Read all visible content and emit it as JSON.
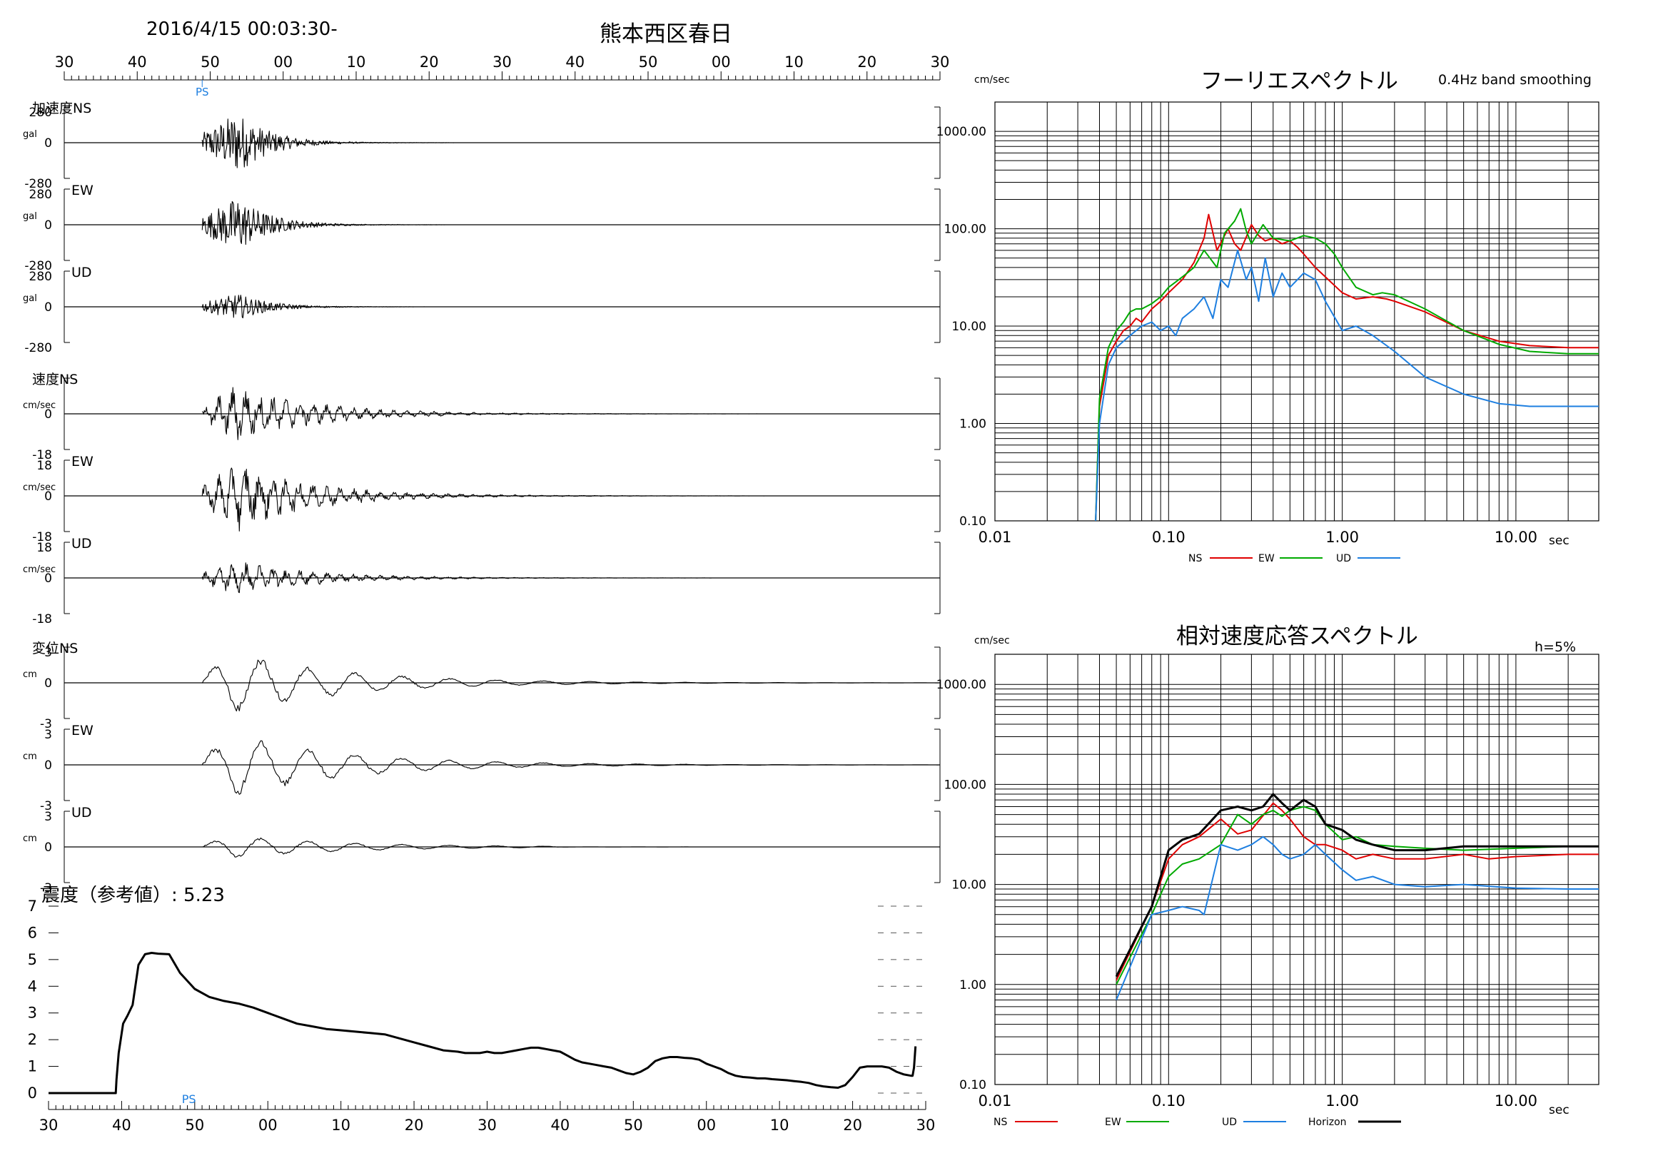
{
  "header": {
    "start_time": "2016/4/15 00:03:30-",
    "station": "熊本西区春日"
  },
  "time_axis": {
    "top_labels": [
      "30",
      "40",
      "50",
      "00",
      "10",
      "20",
      "30",
      "40",
      "50",
      "00",
      "10",
      "20",
      "30"
    ],
    "bottom_labels": [
      "30",
      "40",
      "50",
      "00",
      "10",
      "20",
      "30",
      "40",
      "50",
      "00",
      "10",
      "20",
      "30"
    ],
    "ps_marker": "PS"
  },
  "waveforms": [
    {
      "group": "加速度",
      "component": "NS",
      "label": "加速度NS",
      "unit": "gal",
      "range": [
        "280",
        "0",
        "-280"
      ],
      "amp": 0.95
    },
    {
      "group": "加速度",
      "component": "EW",
      "label": "EW",
      "unit": "gal",
      "range": [
        "280",
        "0",
        "-280"
      ],
      "amp": 0.85
    },
    {
      "group": "加速度",
      "component": "UD",
      "label": "UD",
      "unit": "gal",
      "range": [
        "280",
        "0",
        "-280"
      ],
      "amp": 0.4
    },
    {
      "group": "速度",
      "component": "NS",
      "label": "速度NS",
      "unit": "cm/sec",
      "range": [
        "",
        "0",
        "-18"
      ],
      "amp": 0.85
    },
    {
      "group": "速度",
      "component": "EW",
      "label": "EW",
      "unit": "cm/sec",
      "range": [
        "18",
        "0",
        "-18"
      ],
      "amp": 1.0
    },
    {
      "group": "速度",
      "component": "UD",
      "label": "UD",
      "unit": "cm/sec",
      "range": [
        "18",
        "0",
        "-18"
      ],
      "amp": 0.5
    },
    {
      "group": "変位",
      "component": "NS",
      "label": "変位NS",
      "unit": "cm",
      "range": [
        "3",
        "0",
        "-3"
      ],
      "amp": 0.8
    },
    {
      "group": "変位",
      "component": "EW",
      "label": "EW",
      "unit": "cm",
      "range": [
        "3",
        "0",
        "-3"
      ],
      "amp": 0.85
    },
    {
      "group": "変位",
      "component": "UD",
      "label": "UD",
      "unit": "cm",
      "range": [
        "3",
        "0",
        "-3"
      ],
      "amp": 0.3
    }
  ],
  "intensity": {
    "title": "震度（参考値）: 5.23",
    "y_ticks": [
      "0",
      "1",
      "2",
      "3",
      "4",
      "5",
      "6",
      "7"
    ],
    "chart_data": {
      "type": "line",
      "xlabel": "",
      "ylabel": "",
      "ylim": [
        0,
        7
      ],
      "x_seconds": [
        0,
        9.2,
        9.3,
        9.6,
        10.2,
        10.8,
        11.5,
        12.3,
        13.2,
        14.1,
        15,
        16.5,
        18,
        20,
        22,
        24,
        26,
        28,
        30,
        32,
        34,
        36,
        38,
        40,
        42,
        44,
        46,
        48,
        50,
        52,
        54,
        56,
        57,
        58,
        59,
        60,
        61,
        62,
        63,
        64,
        65,
        66,
        67,
        68,
        69,
        70,
        71,
        72,
        73,
        74,
        75,
        76,
        77,
        78,
        79,
        80,
        81,
        82,
        83,
        84,
        85,
        86,
        87,
        88,
        89,
        90,
        91,
        92,
        93,
        94,
        95,
        96,
        97,
        98,
        99,
        100,
        101,
        102,
        103,
        104,
        105,
        106,
        107,
        108,
        109,
        110,
        111,
        112,
        113,
        114,
        115,
        116,
        117,
        118,
        118.2,
        118.4,
        118.6
      ],
      "values": [
        0,
        0,
        0.5,
        1.5,
        2.6,
        2.9,
        3.3,
        4.8,
        5.2,
        5.25,
        5.22,
        5.2,
        4.5,
        3.9,
        3.6,
        3.45,
        3.35,
        3.2,
        3.0,
        2.8,
        2.6,
        2.5,
        2.4,
        2.35,
        2.3,
        2.25,
        2.2,
        2.05,
        1.9,
        1.75,
        1.6,
        1.55,
        1.5,
        1.5,
        1.5,
        1.55,
        1.5,
        1.5,
        1.55,
        1.6,
        1.65,
        1.7,
        1.7,
        1.65,
        1.6,
        1.55,
        1.4,
        1.25,
        1.15,
        1.1,
        1.05,
        1.0,
        0.95,
        0.85,
        0.75,
        0.7,
        0.8,
        0.95,
        1.2,
        1.3,
        1.35,
        1.35,
        1.32,
        1.3,
        1.25,
        1.1,
        1.0,
        0.9,
        0.75,
        0.65,
        0.6,
        0.58,
        0.55,
        0.55,
        0.52,
        0.5,
        0.48,
        0.45,
        0.42,
        0.38,
        0.3,
        0.25,
        0.22,
        0.2,
        0.3,
        0.6,
        0.95,
        1.0,
        1.0,
        1.0,
        0.95,
        0.8,
        0.7,
        0.65,
        0.65,
        0.95,
        1.75
      ]
    }
  },
  "fourier": {
    "title": "フーリエスペクトル",
    "subtitle": "0.4Hz band smoothing",
    "y_unit": "cm/sec",
    "x_unit": "sec",
    "y_ticks": [
      "0.10",
      "1.00",
      "10.00",
      "100.00",
      "1000.00"
    ],
    "x_ticks": [
      "0.01",
      "0.10",
      "1.00",
      "10.00"
    ],
    "legend": [
      "NS",
      "EW",
      "UD"
    ],
    "chart_data": {
      "type": "line",
      "x_scale": "log",
      "y_scale": "log",
      "xlim": [
        0.01,
        30
      ],
      "ylim": [
        0.1,
        2000
      ],
      "series": [
        {
          "name": "NS",
          "color": "#e00000",
          "x": [
            0.038,
            0.04,
            0.045,
            0.05,
            0.055,
            0.06,
            0.065,
            0.07,
            0.08,
            0.09,
            0.1,
            0.12,
            0.14,
            0.16,
            0.17,
            0.19,
            0.22,
            0.24,
            0.26,
            0.3,
            0.33,
            0.36,
            0.4,
            0.45,
            0.5,
            0.55,
            0.6,
            0.7,
            0.8,
            1.0,
            1.2,
            1.5,
            1.8,
            2.0,
            3.0,
            5.0,
            8.0,
            12,
            20,
            30
          ],
          "y": [
            0.1,
            1.5,
            5,
            7,
            9,
            10,
            12,
            11,
            15,
            18,
            22,
            30,
            45,
            80,
            140,
            60,
            100,
            70,
            60,
            110,
            85,
            75,
            80,
            70,
            75,
            65,
            55,
            40,
            32,
            22,
            19,
            20,
            19,
            18,
            14,
            9,
            7,
            6.3,
            6,
            6
          ]
        },
        {
          "name": "EW",
          "color": "#00aa00",
          "x": [
            0.038,
            0.04,
            0.045,
            0.05,
            0.055,
            0.06,
            0.065,
            0.07,
            0.08,
            0.09,
            0.1,
            0.12,
            0.14,
            0.16,
            0.19,
            0.21,
            0.24,
            0.26,
            0.28,
            0.3,
            0.35,
            0.4,
            0.5,
            0.6,
            0.7,
            0.8,
            0.9,
            1.0,
            1.2,
            1.5,
            1.7,
            2.0,
            3.0,
            5.0,
            8.0,
            12,
            20,
            30
          ],
          "y": [
            0.1,
            1.8,
            6,
            9,
            11,
            14,
            15,
            15,
            17,
            20,
            25,
            32,
            40,
            60,
            40,
            90,
            120,
            160,
            95,
            70,
            110,
            80,
            75,
            85,
            80,
            70,
            55,
            40,
            25,
            21,
            22,
            21,
            15,
            9,
            6.5,
            5.5,
            5.2,
            5.2
          ]
        },
        {
          "name": "UD",
          "color": "#1e7fe0",
          "x": [
            0.038,
            0.04,
            0.045,
            0.05,
            0.055,
            0.06,
            0.065,
            0.07,
            0.08,
            0.09,
            0.1,
            0.11,
            0.12,
            0.14,
            0.16,
            0.18,
            0.2,
            0.22,
            0.25,
            0.28,
            0.3,
            0.33,
            0.36,
            0.4,
            0.45,
            0.5,
            0.6,
            0.7,
            0.8,
            1.0,
            1.2,
            1.5,
            2.0,
            3.0,
            5.0,
            8.0,
            12,
            20,
            30
          ],
          "y": [
            0.1,
            1.0,
            4,
            6,
            7,
            8,
            9,
            10,
            11,
            9,
            10,
            8,
            12,
            15,
            20,
            12,
            30,
            25,
            60,
            30,
            40,
            18,
            50,
            20,
            35,
            25,
            35,
            30,
            18,
            9,
            10,
            8,
            5.5,
            3,
            2,
            1.6,
            1.5,
            1.5,
            1.5
          ]
        }
      ]
    }
  },
  "response": {
    "title": "相対速度応答スペクトル",
    "damping": "h=5%",
    "y_unit": "cm/sec",
    "x_unit": "sec",
    "y_ticks": [
      "0.10",
      "1.00",
      "10.00",
      "100.00",
      "1000.00"
    ],
    "x_ticks": [
      "0.01",
      "0.10",
      "1.00",
      "10.00"
    ],
    "legend": [
      "NS",
      "EW",
      "UD",
      "Horizon"
    ],
    "chart_data": {
      "type": "line",
      "x_scale": "log",
      "y_scale": "log",
      "xlim": [
        0.01,
        30
      ],
      "ylim": [
        0.1,
        2000
      ],
      "series": [
        {
          "name": "NS",
          "color": "#e00000",
          "x": [
            0.05,
            0.08,
            0.1,
            0.12,
            0.15,
            0.2,
            0.25,
            0.3,
            0.4,
            0.45,
            0.5,
            0.6,
            0.7,
            0.8,
            1.0,
            1.2,
            1.5,
            2.0,
            3.0,
            5.0,
            7.0,
            10,
            20,
            30
          ],
          "y": [
            1.1,
            6,
            18,
            25,
            30,
            45,
            32,
            35,
            65,
            55,
            45,
            30,
            25,
            25,
            22,
            18,
            20,
            18,
            18,
            20,
            18,
            19,
            20,
            20
          ]
        },
        {
          "name": "EW",
          "color": "#00aa00",
          "x": [
            0.05,
            0.08,
            0.1,
            0.12,
            0.15,
            0.2,
            0.25,
            0.3,
            0.35,
            0.4,
            0.45,
            0.5,
            0.6,
            0.7,
            0.8,
            1.0,
            1.2,
            1.5,
            2.0,
            3.0,
            5.0,
            10,
            20,
            30
          ],
          "y": [
            1.0,
            5,
            12,
            16,
            18,
            25,
            50,
            40,
            50,
            55,
            48,
            55,
            60,
            55,
            40,
            28,
            30,
            25,
            24,
            23,
            22,
            23,
            24,
            24
          ]
        },
        {
          "name": "UD",
          "color": "#1e7fe0",
          "x": [
            0.05,
            0.08,
            0.1,
            0.12,
            0.15,
            0.16,
            0.2,
            0.25,
            0.3,
            0.35,
            0.4,
            0.45,
            0.5,
            0.6,
            0.7,
            0.8,
            1.0,
            1.2,
            1.5,
            2.0,
            3.0,
            5.0,
            10,
            20,
            30
          ],
          "y": [
            0.7,
            5,
            5.5,
            6,
            5.5,
            5,
            25,
            22,
            25,
            30,
            25,
            20,
            18,
            20,
            25,
            20,
            14,
            11,
            12,
            10,
            9.5,
            10,
            9.2,
            9,
            9
          ]
        },
        {
          "name": "Horizon",
          "color": "#000000",
          "x": [
            0.05,
            0.08,
            0.1,
            0.12,
            0.15,
            0.2,
            0.25,
            0.3,
            0.35,
            0.4,
            0.45,
            0.5,
            0.6,
            0.7,
            0.8,
            1.0,
            1.2,
            1.5,
            2.0,
            3.0,
            5.0,
            10,
            20,
            30
          ],
          "y": [
            1.2,
            6,
            22,
            28,
            32,
            55,
            60,
            55,
            60,
            80,
            65,
            55,
            70,
            60,
            40,
            35,
            28,
            25,
            22,
            22,
            24,
            24,
            24,
            24
          ]
        }
      ]
    }
  }
}
